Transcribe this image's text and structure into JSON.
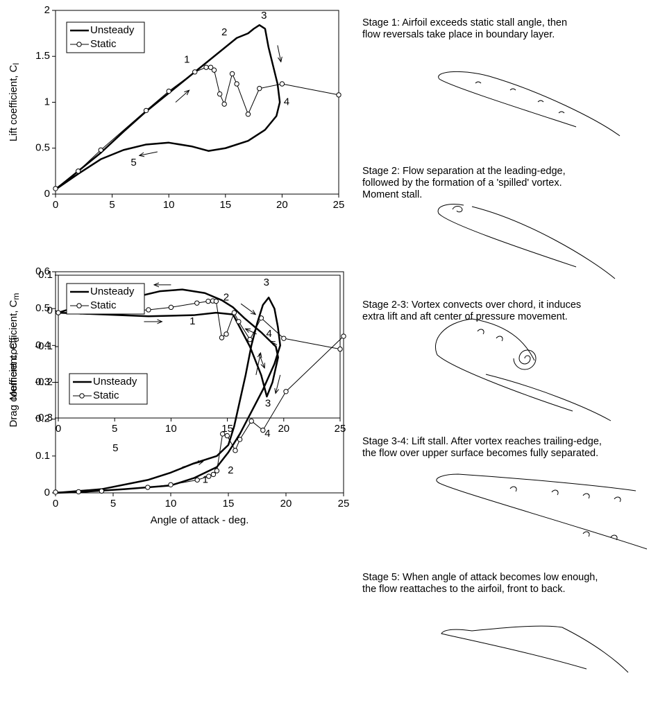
{
  "chart_data": [
    {
      "type": "line",
      "y_label": {
        "text": "Lift coefficient, C",
        "subscript": "l"
      },
      "xlim": [
        0,
        25
      ],
      "xticks": [
        0,
        5,
        10,
        15,
        20,
        25
      ],
      "ylim": [
        0,
        2
      ],
      "yticks": [
        0,
        0.5,
        1,
        1.5,
        2
      ],
      "legend": "upper left",
      "series": [
        {
          "name": "Unsteady",
          "color": "#000000",
          "line_width": 2.5,
          "marker": "none",
          "x": [
            0,
            2,
            4,
            6,
            8,
            10,
            12,
            14,
            15,
            16,
            17,
            17.5,
            18,
            18.5,
            18.8,
            19.2,
            19.6,
            19.8,
            19.5,
            18.5,
            17,
            15,
            13.5,
            12,
            10,
            8,
            6,
            4,
            2,
            0
          ],
          "values": [
            0.05,
            0.25,
            0.45,
            0.68,
            0.9,
            1.1,
            1.3,
            1.5,
            1.6,
            1.7,
            1.75,
            1.8,
            1.84,
            1.8,
            1.6,
            1.4,
            1.2,
            1.0,
            0.85,
            0.7,
            0.58,
            0.5,
            0.47,
            0.52,
            0.56,
            0.54,
            0.48,
            0.38,
            0.22,
            0.05
          ]
        },
        {
          "name": "Static",
          "color": "#000000",
          "line_width": 1,
          "marker": "circle",
          "x": [
            0,
            2,
            4,
            8,
            10,
            12.3,
            13.3,
            13.7,
            14,
            14.5,
            14.9,
            15.6,
            16,
            17,
            18,
            20,
            25
          ],
          "values": [
            0.06,
            0.25,
            0.48,
            0.91,
            1.12,
            1.33,
            1.38,
            1.38,
            1.35,
            1.09,
            0.98,
            1.31,
            1.2,
            0.87,
            1.15,
            1.2,
            1.08
          ]
        }
      ],
      "annotations": [
        {
          "text": "1",
          "x": 11.6,
          "y": 1.46
        },
        {
          "text": "2",
          "x": 14.9,
          "y": 1.76
        },
        {
          "text": "3",
          "x": 18.4,
          "y": 1.94
        },
        {
          "text": "4",
          "x": 20.4,
          "y": 1.0
        },
        {
          "text": "5",
          "x": 6.9,
          "y": 0.34
        }
      ],
      "arrows": [
        [
          10.6,
          1.0,
          11.8,
          1.13
        ],
        [
          19.6,
          1.62,
          19.9,
          1.44
        ],
        [
          9,
          0.46,
          7.4,
          0.42
        ]
      ]
    },
    {
      "type": "line",
      "y_label": {
        "text": "Moment coefficient, C",
        "subscript": "m"
      },
      "xlim": [
        0,
        25
      ],
      "xticks": [
        0,
        5,
        10,
        15,
        20,
        25
      ],
      "ylim": [
        -0.3,
        0.1
      ],
      "yticks": [
        0.1,
        0,
        -0.1,
        -0.2,
        -0.3
      ],
      "legend": "lower left",
      "series": [
        {
          "name": "Unsteady",
          "color": "#000000",
          "line_width": 2.5,
          "marker": "none",
          "x": [
            0,
            4,
            8,
            12,
            14,
            15.5,
            16,
            17,
            18,
            18.5,
            19,
            19.5,
            19.3,
            18,
            16.5,
            15.5,
            14.5,
            13,
            11,
            9,
            7,
            5,
            3,
            1,
            0
          ],
          "values": [
            -0.005,
            -0.01,
            -0.015,
            -0.012,
            -0.005,
            -0.01,
            -0.04,
            -0.1,
            -0.18,
            -0.24,
            -0.2,
            -0.13,
            -0.1,
            -0.06,
            -0.02,
            0.01,
            0.03,
            0.05,
            0.06,
            0.055,
            0.04,
            0.025,
            0.015,
            0.005,
            -0.005
          ]
        },
        {
          "name": "Static",
          "color": "#000000",
          "line_width": 1,
          "marker": "circle",
          "x": [
            0,
            2,
            4,
            8,
            10,
            12.3,
            13.3,
            13.7,
            14,
            14.5,
            14.9,
            15.6,
            16,
            17,
            18,
            20,
            25
          ],
          "values": [
            -0.005,
            -0.003,
            -0.003,
            0.003,
            0.01,
            0.022,
            0.027,
            0.028,
            0.027,
            -0.075,
            -0.065,
            -0.005,
            -0.03,
            -0.08,
            -0.02,
            -0.077,
            -0.107
          ]
        }
      ],
      "annotations": [
        {
          "text": "5",
          "x": 4,
          "y": 0.05
        },
        {
          "text": "2",
          "x": 14.9,
          "y": 0.037
        },
        {
          "text": "1",
          "x": 11.9,
          "y": -0.03
        },
        {
          "text": "4",
          "x": 18.7,
          "y": -0.065
        },
        {
          "text": "3",
          "x": 18.6,
          "y": -0.26
        }
      ],
      "arrows": [
        [
          10,
          0.073,
          8.5,
          0.073
        ],
        [
          7.6,
          -0.03,
          9.2,
          -0.03
        ],
        [
          16.2,
          0.02,
          17.5,
          -0.01
        ],
        [
          17.6,
          -0.065,
          16.6,
          -0.05
        ],
        [
          17.8,
          -0.12,
          18.3,
          -0.16
        ],
        [
          19.4,
          -0.095,
          18.8,
          -0.085
        ]
      ]
    },
    {
      "type": "line",
      "y_label": {
        "text": "Drag coefficient, C",
        "subscript": "d"
      },
      "x_label": "Angle of attack - deg.",
      "xlim": [
        0,
        25
      ],
      "xticks": [
        0,
        5,
        10,
        15,
        20,
        25
      ],
      "ylim": [
        0,
        0.6
      ],
      "yticks": [
        0,
        0.1,
        0.2,
        0.3,
        0.4,
        0.5,
        0.6
      ],
      "legend": "upper left",
      "series": [
        {
          "name": "Unsteady",
          "color": "#000000",
          "line_width": 2.5,
          "marker": "none",
          "x": [
            0,
            4,
            8,
            10,
            12,
            14,
            15,
            15.5,
            16,
            16.5,
            17,
            17.5,
            18,
            18.5,
            19,
            19.3,
            19.5,
            19,
            18,
            17,
            16,
            15,
            14,
            12,
            10,
            6,
            2,
            0
          ],
          "values": [
            0,
            0.01,
            0.035,
            0.055,
            0.08,
            0.1,
            0.13,
            0.18,
            0.25,
            0.32,
            0.4,
            0.46,
            0.51,
            0.53,
            0.5,
            0.45,
            0.4,
            0.35,
            0.28,
            0.22,
            0.16,
            0.11,
            0.07,
            0.04,
            0.02,
            0.01,
            0.002,
            0
          ]
        },
        {
          "name": "Static",
          "color": "#000000",
          "line_width": 1,
          "marker": "circle",
          "x": [
            0,
            2,
            4,
            8,
            10,
            12.3,
            13.3,
            13.7,
            14,
            14.5,
            14.9,
            15.6,
            16,
            17,
            18,
            20,
            25
          ],
          "values": [
            0.002,
            0.003,
            0.005,
            0.015,
            0.022,
            0.035,
            0.045,
            0.05,
            0.06,
            0.16,
            0.155,
            0.115,
            0.145,
            0.195,
            0.17,
            0.275,
            0.425
          ]
        }
      ],
      "annotations": [
        {
          "text": "3",
          "x": 18.3,
          "y": 0.57
        },
        {
          "text": "4",
          "x": 18.4,
          "y": 0.16
        },
        {
          "text": "2",
          "x": 15.2,
          "y": 0.06
        },
        {
          "text": "1",
          "x": 13,
          "y": 0.035
        },
        {
          "text": "5",
          "x": 5.2,
          "y": 0.12
        }
      ],
      "arrows": [
        [
          11,
          0.07,
          12.8,
          0.085
        ],
        [
          17.4,
          0.32,
          17.8,
          0.38
        ],
        [
          19.5,
          0.32,
          19.1,
          0.27
        ]
      ]
    }
  ],
  "stages": [
    {
      "lines": [
        "Stage 1:  Airfoil exceeds static stall angle, then",
        "flow reversals take place in boundary layer."
      ]
    },
    {
      "lines": [
        "Stage 2: Flow separation at the leading-edge,",
        "followed by the formation of a 'spilled' vortex.",
        "Moment stall."
      ]
    },
    {
      "lines": [
        "Stage 2-3: Vortex convects over chord, it induces",
        "extra lift and aft center of pressure movement."
      ]
    },
    {
      "lines": [
        "Stage 3-4: Lift stall. After vortex reaches trailing-edge,",
        "the flow over upper surface becomes fully separated."
      ]
    },
    {
      "lines": [
        "Stage 5: When angle of attack becomes low enough,",
        "the flow reattaches to the airfoil, front to back."
      ]
    }
  ]
}
